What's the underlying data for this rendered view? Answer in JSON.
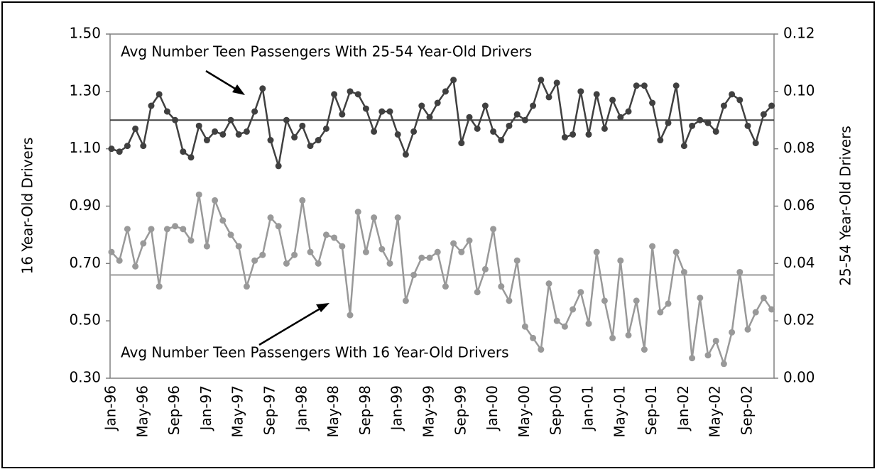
{
  "chart_data": {
    "type": "line",
    "ylabel": "16 Year-Old Drivers",
    "y2label": "25-54 Year-Old Drivers",
    "annotations": [
      {
        "text": "Avg Number Teen Passengers With 25-54 Year-Old Drivers"
      },
      {
        "text": "Avg Number Teen Passengers With 16 Year-Old Drivers"
      }
    ],
    "categories": [
      "Jan-96",
      null,
      null,
      null,
      "May-96",
      null,
      null,
      null,
      "Sep-96",
      null,
      null,
      null,
      "Jan-97",
      null,
      null,
      null,
      "May-97",
      null,
      null,
      null,
      "Sep-97",
      null,
      null,
      null,
      "Jan-98",
      null,
      null,
      null,
      "May-98",
      null,
      null,
      null,
      "Sep-98",
      null,
      null,
      null,
      "Jan-99",
      null,
      null,
      null,
      "May-99",
      null,
      null,
      null,
      "Sep-99",
      null,
      null,
      null,
      "Jan-00",
      null,
      null,
      null,
      "May-00",
      null,
      null,
      null,
      "Sep-00",
      null,
      null,
      null,
      "Jan-01",
      null,
      null,
      null,
      "May-01",
      null,
      null,
      null,
      "Sep-01",
      null,
      null,
      null,
      "Jan-02",
      null,
      null,
      null,
      "May-02",
      null,
      null,
      null,
      "Sep-02",
      null,
      null,
      null
    ],
    "series": [
      {
        "color": "#999999",
        "average": 0.66,
        "values": [
          0.74,
          0.71,
          0.82,
          0.69,
          0.77,
          0.82,
          0.62,
          0.82,
          0.83,
          0.82,
          0.78,
          0.94,
          0.76,
          0.92,
          0.85,
          0.8,
          0.76,
          0.62,
          0.71,
          0.73,
          0.86,
          0.83,
          0.7,
          0.73,
          0.92,
          0.74,
          0.7,
          0.8,
          0.79,
          0.76,
          0.52,
          0.88,
          0.74,
          0.86,
          0.75,
          0.7,
          0.86,
          0.57,
          0.66,
          0.72,
          0.72,
          0.74,
          0.62,
          0.77,
          0.74,
          0.78,
          0.6,
          0.68,
          0.82,
          0.62,
          0.57,
          0.71,
          0.48,
          0.44,
          0.4,
          0.63,
          0.5,
          0.48,
          0.54,
          0.6,
          0.49,
          0.74,
          0.57,
          0.44,
          0.71,
          0.45,
          0.57,
          0.4,
          0.76,
          0.53,
          0.56,
          0.74,
          0.67,
          0.37,
          0.58,
          0.38,
          0.43,
          0.35,
          0.46,
          0.67,
          0.47,
          0.53,
          0.58,
          0.54
        ]
      },
      {
        "color": "#404040",
        "axis": "y2",
        "average": 0.09,
        "values": [
          0.08,
          0.079,
          0.081,
          0.087,
          0.081,
          0.095,
          0.099,
          0.093,
          0.09,
          0.079,
          0.077,
          0.088,
          0.083,
          0.086,
          0.085,
          0.09,
          0.085,
          0.086,
          0.093,
          0.101,
          0.083,
          0.074,
          0.09,
          0.084,
          0.088,
          0.081,
          0.083,
          0.087,
          0.099,
          0.092,
          0.1,
          0.099,
          0.094,
          0.086,
          0.093,
          0.093,
          0.085,
          0.078,
          0.086,
          0.095,
          0.091,
          0.096,
          0.1,
          0.104,
          0.082,
          0.091,
          0.087,
          0.095,
          0.086,
          0.083,
          0.088,
          0.092,
          0.09,
          0.095,
          0.104,
          0.098,
          0.103,
          0.084,
          0.085,
          0.1,
          0.085,
          0.099,
          0.087,
          0.097,
          0.091,
          0.093,
          0.102,
          0.102,
          0.096,
          0.083,
          0.089,
          0.102,
          0.081,
          0.088,
          0.09,
          0.089,
          0.086,
          0.095,
          0.099,
          0.097,
          0.088,
          0.082,
          0.092,
          0.095
        ]
      }
    ],
    "ylim": [
      0.3,
      1.5
    ],
    "yticks": [
      {
        "value": 0.3,
        "label": "0.30"
      },
      {
        "value": 0.5,
        "label": "0.50"
      },
      {
        "value": 0.7,
        "label": "0.70"
      },
      {
        "value": 0.9,
        "label": "0.90"
      },
      {
        "value": 1.1,
        "label": "1.10"
      },
      {
        "value": 1.3,
        "label": "1.30"
      },
      {
        "value": 1.5,
        "label": "1.50"
      }
    ],
    "y2lim": [
      0,
      0.12
    ],
    "y2ticks": [
      {
        "value": 0,
        "label": "0.00"
      },
      {
        "value": 0.02,
        "label": "0.02"
      },
      {
        "value": 0.04,
        "label": "0.04"
      },
      {
        "value": 0.06,
        "label": "0.06"
      },
      {
        "value": 0.08,
        "label": "0.08"
      },
      {
        "value": 0.1,
        "label": "0.10"
      },
      {
        "value": 0.12,
        "label": "0.12"
      }
    ]
  }
}
